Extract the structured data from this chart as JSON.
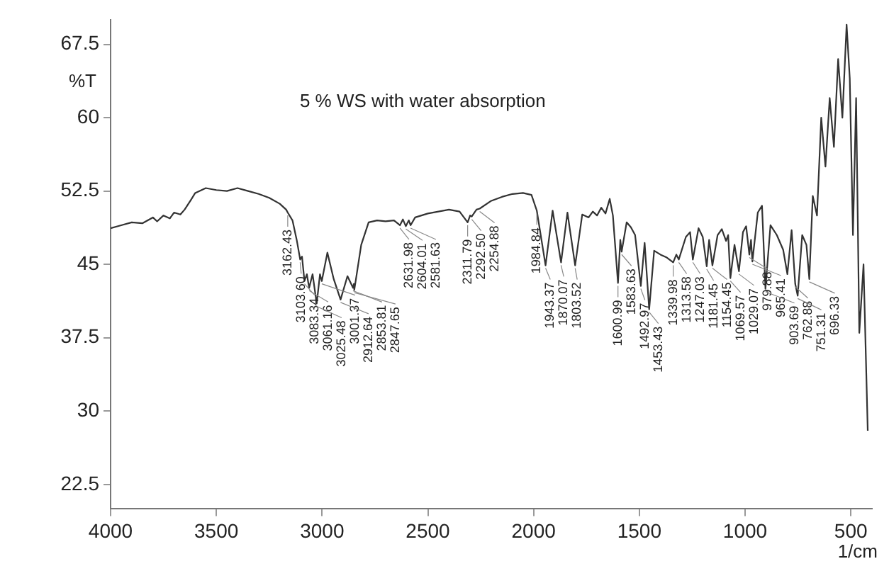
{
  "chart_data": {
    "type": "line",
    "title": "5 % WS with water absorption",
    "xlabel": "1/cm",
    "ylabel": "%T",
    "xlim": [
      4000,
      400
    ],
    "xticks": [
      4000,
      3500,
      3000,
      2500,
      2000,
      1500,
      1000,
      500
    ],
    "ylim": [
      20,
      70
    ],
    "yticks": [
      22.5,
      30,
      37.5,
      45,
      52.5,
      60,
      67.5
    ],
    "legend": false,
    "marker": "none",
    "line_style": "solid",
    "x": [
      4000,
      3950,
      3900,
      3850,
      3800,
      3780,
      3750,
      3720,
      3700,
      3670,
      3650,
      3620,
      3600,
      3550,
      3500,
      3450,
      3400,
      3350,
      3300,
      3250,
      3200,
      3170,
      3162.43,
      3140,
      3120,
      3103.6,
      3095,
      3083.34,
      3072,
      3061.16,
      3045,
      3025.48,
      3010,
      3001.37,
      2975,
      2945,
      2912.64,
      2880,
      2853.81,
      2850,
      2847.65,
      2815,
      2780,
      2740,
      2700,
      2660,
      2631.98,
      2618,
      2604.01,
      2590,
      2581.63,
      2560,
      2500,
      2450,
      2400,
      2350,
      2311.79,
      2300,
      2292.5,
      2270,
      2254.88,
      2200,
      2150,
      2100,
      2050,
      2010,
      1984.84,
      1970,
      1943.37,
      1910,
      1870.07,
      1840,
      1803.52,
      1770,
      1740,
      1720,
      1700,
      1680,
      1660,
      1640,
      1625,
      1600.99,
      1590,
      1583.63,
      1560,
      1540,
      1520,
      1492.97,
      1475,
      1453.43,
      1430,
      1400,
      1370,
      1339.98,
      1325,
      1313.58,
      1280,
      1260,
      1247.03,
      1220,
      1200,
      1181.45,
      1170,
      1154.45,
      1130,
      1110,
      1090,
      1080,
      1069.57,
      1050,
      1029.07,
      1010,
      995,
      979.88,
      972,
      965.41,
      940,
      920,
      903.69,
      880,
      850,
      820,
      800,
      780,
      762.88,
      751.31,
      730,
      710,
      696.33,
      680,
      660,
      640,
      620,
      600,
      580,
      560,
      540,
      520,
      505,
      490,
      475,
      460,
      440,
      420
    ],
    "series": [
      {
        "color": "#333333",
        "values": [
          48.7,
          49.0,
          49.3,
          49.2,
          49.8,
          49.4,
          50.0,
          49.7,
          50.3,
          50.1,
          50.6,
          51.6,
          52.3,
          52.8,
          52.6,
          52.5,
          52.8,
          52.5,
          52.2,
          51.8,
          51.2,
          50.6,
          50.3,
          49.5,
          47.5,
          45.5,
          45.8,
          43.3,
          44.0,
          42.6,
          44.0,
          41.0,
          44.0,
          43.3,
          46.2,
          43.5,
          41.4,
          43.8,
          42.6,
          43.0,
          42.4,
          47.0,
          49.3,
          49.5,
          49.4,
          49.5,
          49.0,
          49.6,
          48.9,
          49.5,
          49.0,
          49.8,
          50.2,
          50.4,
          50.6,
          50.4,
          49.3,
          50.0,
          49.9,
          50.6,
          50.7,
          51.5,
          51.9,
          52.2,
          52.3,
          52.1,
          50.5,
          48.5,
          44.9,
          50.5,
          45.2,
          50.3,
          44.9,
          50.1,
          49.8,
          50.4,
          50.0,
          50.8,
          50.2,
          51.7,
          50.0,
          43.1,
          47.5,
          46.3,
          49.3,
          48.8,
          48.0,
          42.8,
          47.2,
          40.4,
          46.4,
          46.0,
          45.7,
          45.2,
          46.0,
          45.5,
          47.8,
          48.3,
          45.5,
          48.7,
          47.8,
          44.8,
          47.5,
          44.9,
          48.0,
          48.6,
          47.4,
          48.0,
          43.6,
          47.0,
          44.3,
          48.3,
          48.9,
          46.0,
          47.5,
          45.3,
          50.3,
          51.0,
          42.5,
          49.0,
          48.0,
          46.5,
          44.0,
          48.5,
          43.0,
          41.8,
          48.0,
          47.0,
          43.5,
          52.0,
          50.0,
          60.0,
          55.0,
          62.0,
          57.0,
          66.0,
          60.0,
          69.5,
          64.0,
          48.0,
          62.0,
          38.0,
          45.0,
          28.0
        ]
      }
    ],
    "annotations": [
      {
        "text": "3162.43",
        "x": 3162.43,
        "y": 50.3
      },
      {
        "text": "3103.60",
        "x": 3103.6,
        "y": 45.5
      },
      {
        "text": "3083.34",
        "x": 3083.34,
        "y": 43.3
      },
      {
        "text": "3061.16",
        "x": 3061.16,
        "y": 42.6
      },
      {
        "text": "3025.48",
        "x": 3025.48,
        "y": 41.0
      },
      {
        "text": "3001.37",
        "x": 3001.37,
        "y": 43.3
      },
      {
        "text": "2912.64",
        "x": 2912.64,
        "y": 41.4
      },
      {
        "text": "2853.81",
        "x": 2853.81,
        "y": 42.6
      },
      {
        "text": "2847.65",
        "x": 2847.65,
        "y": 42.4
      },
      {
        "text": "2631.98",
        "x": 2631.98,
        "y": 49.0
      },
      {
        "text": "2604.01",
        "x": 2604.01,
        "y": 48.9
      },
      {
        "text": "2581.63",
        "x": 2581.63,
        "y": 49.0
      },
      {
        "text": "2311.79",
        "x": 2311.79,
        "y": 49.3
      },
      {
        "text": "2292.50",
        "x": 2292.5,
        "y": 49.9
      },
      {
        "text": "2254.88",
        "x": 2254.88,
        "y": 50.7
      },
      {
        "text": "1984.84",
        "x": 1984.84,
        "y": 50.5
      },
      {
        "text": "1943.37",
        "x": 1943.37,
        "y": 44.9
      },
      {
        "text": "1870.07",
        "x": 1870.07,
        "y": 45.2
      },
      {
        "text": "1803.52",
        "x": 1803.52,
        "y": 44.9
      },
      {
        "text": "1600.99",
        "x": 1600.99,
        "y": 43.1
      },
      {
        "text": "1583.63",
        "x": 1583.63,
        "y": 46.3
      },
      {
        "text": "1492.97",
        "x": 1492.97,
        "y": 42.8
      },
      {
        "text": "1453.43",
        "x": 1453.43,
        "y": 40.4
      },
      {
        "text": "1339.98",
        "x": 1339.98,
        "y": 45.2
      },
      {
        "text": "1313.58",
        "x": 1313.58,
        "y": 45.5
      },
      {
        "text": "1247.03",
        "x": 1247.03,
        "y": 45.5
      },
      {
        "text": "1181.45",
        "x": 1181.45,
        "y": 44.8
      },
      {
        "text": "1154.45",
        "x": 1154.45,
        "y": 44.9
      },
      {
        "text": "1069.57",
        "x": 1069.57,
        "y": 43.6
      },
      {
        "text": "1029.07",
        "x": 1029.07,
        "y": 44.3
      },
      {
        "text": "979.88",
        "x": 979.88,
        "y": 46.0
      },
      {
        "text": "965.41",
        "x": 965.41,
        "y": 45.3
      },
      {
        "text": "903.69",
        "x": 903.69,
        "y": 42.5
      },
      {
        "text": "762.88",
        "x": 762.88,
        "y": 43.0
      },
      {
        "text": "751.31",
        "x": 751.31,
        "y": 41.8
      },
      {
        "text": "696.33",
        "x": 696.33,
        "y": 43.5
      }
    ]
  }
}
